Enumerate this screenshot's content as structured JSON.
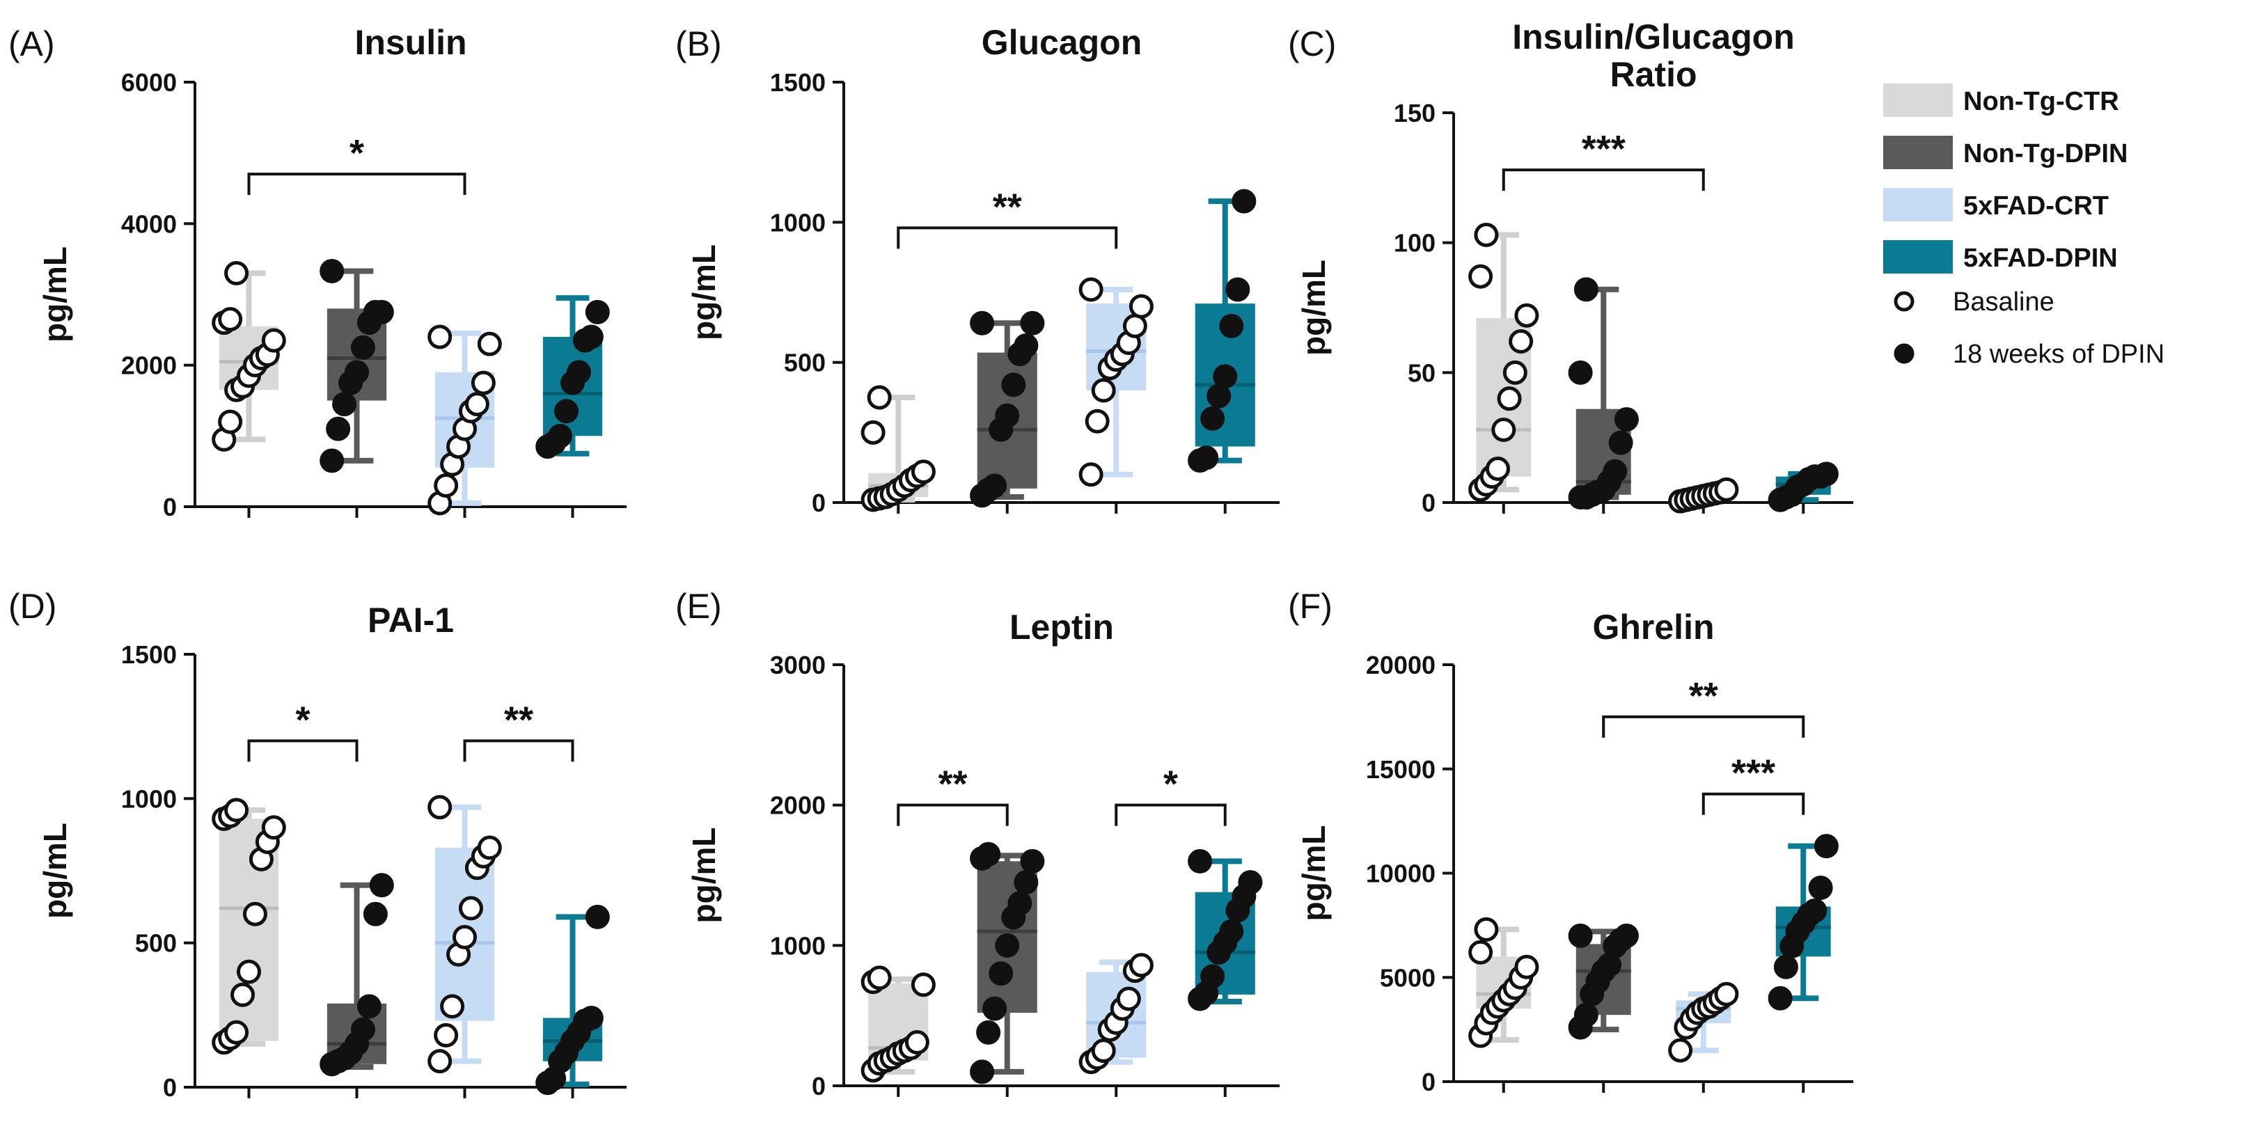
{
  "legend": {
    "groups": [
      {
        "label": "Non-Tg-CTR",
        "color": "#d9d9d9",
        "whisker": "#cfcfcf"
      },
      {
        "label": "Non-Tg-DPIN",
        "color": "#5a5a5a",
        "whisker": "#5a5a5a"
      },
      {
        "label": "5xFAD-CRT",
        "color": "#c6dcf4",
        "whisker": "#c6dcf4"
      },
      {
        "label": "5xFAD-DPIN",
        "color": "#0b7b93",
        "whisker": "#0b7b93"
      }
    ],
    "markers": [
      {
        "label": "Basaline",
        "style": "open"
      },
      {
        "label": "18 weeks of DPIN",
        "style": "filled"
      }
    ]
  },
  "chart_data": [
    {
      "panel": "(A)",
      "type": "box",
      "title": "Insulin",
      "ylabel": "pg/mL",
      "ylim": [
        0,
        6000
      ],
      "yticks": [
        0,
        2000,
        4000,
        6000
      ],
      "groups": [
        {
          "name": "Non-Tg-CTR",
          "min": 950,
          "q1": 1650,
          "median": 2050,
          "q3": 2550,
          "max": 3300,
          "points": [
            950,
            1200,
            1650,
            1700,
            1850,
            2000,
            2100,
            2150,
            2350,
            2600,
            2650,
            3300
          ]
        },
        {
          "name": "Non-Tg-DPIN",
          "min": 650,
          "q1": 1500,
          "median": 2100,
          "q3": 2800,
          "max": 3330,
          "points": [
            650,
            1100,
            1450,
            1750,
            1900,
            2250,
            2600,
            2750,
            2750,
            3330
          ]
        },
        {
          "name": "5xFAD-CRT",
          "min": 50,
          "q1": 550,
          "median": 1250,
          "q3": 1900,
          "max": 2450,
          "points": [
            50,
            300,
            600,
            850,
            1100,
            1350,
            1450,
            1750,
            2300,
            2400
          ]
        },
        {
          "name": "5xFAD-DPIN",
          "min": 750,
          "q1": 1000,
          "median": 1600,
          "q3": 2400,
          "max": 2950,
          "points": [
            850,
            900,
            1000,
            1350,
            1750,
            1900,
            2350,
            2400,
            2750
          ]
        }
      ],
      "significance": [
        {
          "from": 0,
          "to": 2,
          "label": "*",
          "level": 4700
        }
      ]
    },
    {
      "panel": "(B)",
      "type": "box",
      "title": "Glucagon",
      "ylabel": "pg/mL",
      "ylim": [
        0,
        1500
      ],
      "yticks": [
        0,
        500,
        1000,
        1500
      ],
      "groups": [
        {
          "name": "Non-Tg-CTR",
          "min": 10,
          "q1": 20,
          "median": 60,
          "q3": 105,
          "max": 375,
          "points": [
            10,
            15,
            20,
            30,
            45,
            60,
            80,
            95,
            110,
            250,
            375
          ]
        },
        {
          "name": "Non-Tg-DPIN",
          "min": 20,
          "q1": 50,
          "median": 260,
          "q3": 535,
          "max": 640,
          "points": [
            25,
            45,
            60,
            260,
            310,
            420,
            530,
            560,
            640,
            640
          ]
        },
        {
          "name": "5xFAD-CRT",
          "min": 100,
          "q1": 400,
          "median": 540,
          "q3": 710,
          "max": 760,
          "points": [
            100,
            290,
            400,
            480,
            510,
            530,
            570,
            630,
            700,
            760
          ]
        },
        {
          "name": "5xFAD-DPIN",
          "min": 150,
          "q1": 200,
          "median": 420,
          "q3": 710,
          "max": 1075,
          "points": [
            150,
            160,
            300,
            380,
            450,
            630,
            760,
            1075
          ]
        }
      ],
      "significance": [
        {
          "from": 0,
          "to": 2,
          "label": "**",
          "level": 980
        }
      ]
    },
    {
      "panel": "(C)",
      "type": "box",
      "title": "Insulin/Glucagon\nRatio",
      "ylabel": "pg/mL",
      "ylim": [
        0,
        150
      ],
      "yticks": [
        0,
        50,
        100,
        150
      ],
      "groups": [
        {
          "name": "Non-Tg-CTR",
          "min": 5,
          "q1": 10,
          "median": 28,
          "q3": 71,
          "max": 103,
          "points": [
            5,
            7,
            10,
            13,
            28,
            40,
            50,
            62,
            72,
            87,
            103
          ]
        },
        {
          "name": "Non-Tg-DPIN",
          "min": 2,
          "q1": 3,
          "median": 8,
          "q3": 36,
          "max": 82,
          "points": [
            2,
            2,
            3,
            4,
            5,
            8,
            12,
            23,
            32,
            50,
            82
          ]
        },
        {
          "name": "5xFAD-CRT",
          "min": 0.5,
          "q1": 1,
          "median": 2,
          "q3": 4,
          "max": 5,
          "points": [
            0.5,
            1,
            1.5,
            2,
            2.5,
            3,
            3.5,
            4,
            5
          ]
        },
        {
          "name": "5xFAD-DPIN",
          "min": 1,
          "q1": 3,
          "median": 7,
          "q3": 10,
          "max": 11,
          "points": [
            1,
            2,
            3,
            6,
            7,
            9,
            10,
            10,
            11
          ]
        }
      ],
      "significance": [
        {
          "from": 0,
          "to": 2,
          "label": "***",
          "level": 128
        }
      ]
    },
    {
      "panel": "(D)",
      "type": "box",
      "title": "PAI-1",
      "ylabel": "pg/mL",
      "ylim": [
        0,
        1500
      ],
      "yticks": [
        0,
        500,
        1000,
        1500
      ],
      "groups": [
        {
          "name": "Non-Tg-CTR",
          "min": 150,
          "q1": 160,
          "median": 620,
          "q3": 930,
          "max": 960,
          "points": [
            155,
            170,
            190,
            320,
            400,
            600,
            790,
            850,
            900,
            930,
            940,
            960
          ]
        },
        {
          "name": "Non-Tg-DPIN",
          "min": 70,
          "q1": 80,
          "median": 150,
          "q3": 290,
          "max": 700,
          "points": [
            80,
            90,
            100,
            120,
            150,
            200,
            280,
            600,
            700
          ]
        },
        {
          "name": "5xFAD-CRT",
          "min": 90,
          "q1": 230,
          "median": 500,
          "q3": 830,
          "max": 970,
          "points": [
            90,
            180,
            280,
            460,
            520,
            620,
            760,
            800,
            830,
            970
          ]
        },
        {
          "name": "5xFAD-DPIN",
          "min": 10,
          "q1": 90,
          "median": 160,
          "q3": 240,
          "max": 590,
          "points": [
            15,
            30,
            90,
            120,
            160,
            190,
            230,
            240,
            590
          ]
        }
      ],
      "significance": [
        {
          "from": 0,
          "to": 1,
          "label": "*",
          "level": 1200
        },
        {
          "from": 2,
          "to": 3,
          "label": "**",
          "level": 1200
        }
      ]
    },
    {
      "panel": "(E)",
      "type": "box",
      "title": "Leptin",
      "ylabel": "pg/mL",
      "ylim": [
        0,
        3000
      ],
      "yticks": [
        0,
        1000,
        2000,
        3000
      ],
      "groups": [
        {
          "name": "Non-Tg-CTR",
          "min": 100,
          "q1": 180,
          "median": 270,
          "q3": 730,
          "max": 760,
          "points": [
            110,
            160,
            180,
            200,
            230,
            250,
            270,
            310,
            720,
            740,
            770
          ]
        },
        {
          "name": "Non-Tg-DPIN",
          "min": 100,
          "q1": 520,
          "median": 1100,
          "q3": 1600,
          "max": 1640,
          "points": [
            100,
            380,
            550,
            800,
            1000,
            1200,
            1300,
            1450,
            1600,
            1620,
            1650
          ]
        },
        {
          "name": "5xFAD-CRT",
          "min": 170,
          "q1": 200,
          "median": 450,
          "q3": 810,
          "max": 880,
          "points": [
            170,
            200,
            250,
            400,
            450,
            550,
            620,
            820,
            860
          ]
        },
        {
          "name": "5xFAD-DPIN",
          "min": 600,
          "q1": 650,
          "median": 950,
          "q3": 1380,
          "max": 1600,
          "points": [
            620,
            660,
            780,
            950,
            1020,
            1100,
            1250,
            1350,
            1450,
            1600
          ]
        }
      ],
      "significance": [
        {
          "from": 0,
          "to": 1,
          "label": "**",
          "level": 2000
        },
        {
          "from": 2,
          "to": 3,
          "label": "*",
          "level": 2000
        }
      ]
    },
    {
      "panel": "(F)",
      "type": "box",
      "title": "Ghrelin",
      "ylabel": "pg/mL",
      "ylim": [
        0,
        20000
      ],
      "yticks": [
        0,
        5000,
        10000,
        15000,
        20000
      ],
      "groups": [
        {
          "name": "Non-Tg-CTR",
          "min": 2000,
          "q1": 3500,
          "median": 4200,
          "q3": 6000,
          "max": 7300,
          "points": [
            2200,
            2800,
            3300,
            3600,
            3900,
            4200,
            4500,
            5000,
            5500,
            6200,
            7300
          ]
        },
        {
          "name": "Non-Tg-DPIN",
          "min": 2500,
          "q1": 3200,
          "median": 5300,
          "q3": 6600,
          "max": 7200,
          "points": [
            2600,
            3200,
            4200,
            4800,
            5300,
            5600,
            6500,
            6800,
            7000,
            7000
          ]
        },
        {
          "name": "5xFAD-CRT",
          "min": 1500,
          "q1": 2800,
          "median": 3500,
          "q3": 3900,
          "max": 4200,
          "points": [
            1500,
            2600,
            3000,
            3300,
            3500,
            3600,
            3800,
            4000,
            4200
          ]
        },
        {
          "name": "5xFAD-DPIN",
          "min": 4000,
          "q1": 6000,
          "median": 7400,
          "q3": 8400,
          "max": 11300,
          "points": [
            4000,
            5500,
            6500,
            7200,
            7600,
            8000,
            8200,
            9300,
            11300
          ]
        }
      ],
      "significance": [
        {
          "from": 1,
          "to": 3,
          "label": "**",
          "level": 17500
        },
        {
          "from": 2,
          "to": 3,
          "label": "***",
          "level": 13800
        }
      ]
    }
  ]
}
